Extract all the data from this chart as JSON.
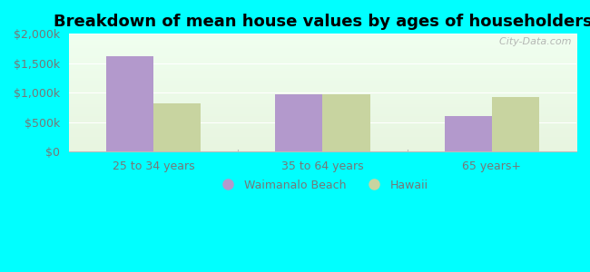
{
  "title": "Breakdown of mean house values by ages of householders",
  "categories": [
    "25 to 34 years",
    "35 to 64 years",
    "65 years+"
  ],
  "series": [
    {
      "name": "Waimanalo Beach",
      "values": [
        1625000,
        975000,
        600000
      ],
      "color": "#b399cc"
    },
    {
      "name": "Hawaii",
      "values": [
        825000,
        975000,
        925000
      ],
      "color": "#c8d4a0"
    }
  ],
  "ylim": [
    0,
    2000000
  ],
  "yticks": [
    0,
    500000,
    1000000,
    1500000,
    2000000
  ],
  "ytick_labels": [
    "$0",
    "$500k",
    "$1,000k",
    "$1,500k",
    "$2,000k"
  ],
  "background_color": "#00ffff",
  "bar_width": 0.28,
  "title_fontsize": 13,
  "tick_fontsize": 9,
  "legend_fontsize": 9,
  "watermark": "  City-Data.com",
  "plot_bg_top": "#f0fff0",
  "plot_bg_bottom": "#e8f5e0",
  "grid_color": "#d0e8c8",
  "tick_color": "#777777",
  "spine_color": "#bbbbbb"
}
